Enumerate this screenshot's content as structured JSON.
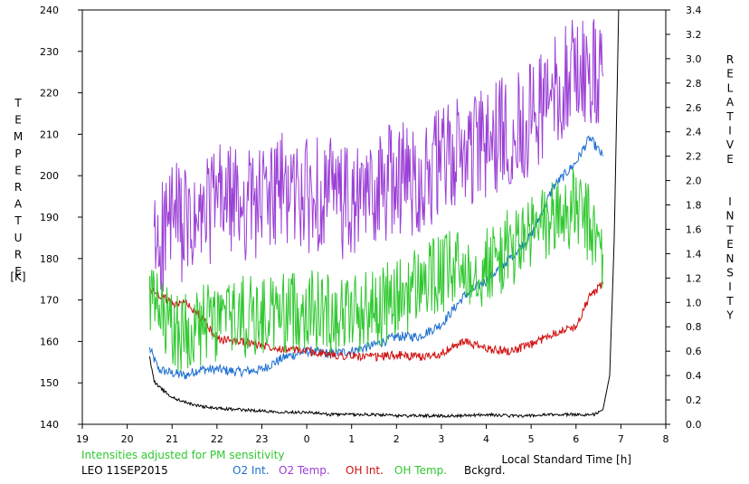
{
  "chart_data": {
    "type": "line",
    "xlabel": "Local Standard Time [h]",
    "ylabel_left": "TEMPERATURE",
    "ylabel_left_unit": "[K]",
    "ylabel_right": "RELATIVE  INTENSITY",
    "x_ticks": [
      "19",
      "20",
      "21",
      "22",
      "23",
      "0",
      "1",
      "2",
      "3",
      "4",
      "5",
      "6",
      "7",
      "8"
    ],
    "xlim": [
      19,
      32
    ],
    "ylim_left": [
      140,
      240
    ],
    "ylim_right": [
      0.0,
      3.4
    ],
    "y_left_ticks": [
      240,
      230,
      220,
      210,
      200,
      190,
      180,
      170,
      160,
      150,
      140
    ],
    "y_right_ticks": [
      "3.4",
      "3.2",
      "3.0",
      "2.8",
      "2.6",
      "2.4",
      "2.2",
      "2.0",
      "1.8",
      "1.6",
      "1.4",
      "1.2",
      "1.0",
      "0.8",
      "0.6",
      "0.4",
      "0.2",
      "0.0"
    ],
    "series": [
      {
        "name": "O2 Int.",
        "axis": "right",
        "color": "#1e6fd0",
        "x": [
          20.5,
          20.7,
          21.0,
          21.3,
          21.6,
          22.0,
          22.5,
          23.0,
          23.5,
          24.0,
          24.5,
          25.0,
          25.5,
          26.0,
          26.5,
          27.0,
          27.5,
          28.0,
          28.5,
          29.0,
          29.5,
          30.0,
          30.3,
          30.6
        ],
        "y": [
          0.62,
          0.45,
          0.42,
          0.4,
          0.45,
          0.45,
          0.43,
          0.45,
          0.55,
          0.6,
          0.58,
          0.6,
          0.65,
          0.72,
          0.72,
          0.82,
          1.05,
          1.18,
          1.35,
          1.55,
          1.95,
          2.15,
          2.35,
          2.2
        ]
      },
      {
        "name": "O2 Temp.",
        "axis": "left",
        "color": "#9b40d6",
        "x": [
          20.6,
          21.0,
          21.5,
          22.0,
          22.5,
          23.0,
          23.5,
          24.0,
          24.5,
          25.0,
          25.5,
          26.0,
          26.5,
          27.0,
          27.5,
          28.0,
          28.5,
          29.0,
          29.5,
          30.0,
          30.3,
          30.6
        ],
        "y": [
          182,
          190,
          186,
          195,
          193,
          194,
          197,
          195,
          196,
          192,
          196,
          200,
          199,
          203,
          206,
          207,
          211,
          214,
          220,
          226,
          224,
          224
        ]
      },
      {
        "name": "OH Int.",
        "axis": "right",
        "color": "#d01010",
        "x": [
          20.5,
          20.8,
          21.0,
          21.3,
          21.6,
          22.0,
          22.5,
          23.0,
          23.5,
          24.0,
          24.5,
          25.0,
          25.5,
          26.0,
          26.5,
          27.0,
          27.5,
          28.0,
          28.5,
          29.0,
          29.5,
          30.0,
          30.3,
          30.6
        ],
        "y": [
          1.1,
          1.05,
          0.98,
          1.0,
          0.9,
          0.7,
          0.68,
          0.65,
          0.62,
          0.6,
          0.57,
          0.56,
          0.55,
          0.57,
          0.55,
          0.58,
          0.68,
          0.62,
          0.6,
          0.65,
          0.75,
          0.8,
          1.05,
          1.15
        ]
      },
      {
        "name": "OH Temp.",
        "axis": "left",
        "color": "#2fc82f",
        "x": [
          20.5,
          21.0,
          21.5,
          22.0,
          22.5,
          23.0,
          23.5,
          24.0,
          24.5,
          25.0,
          25.5,
          26.0,
          26.5,
          27.0,
          27.5,
          28.0,
          28.5,
          29.0,
          29.5,
          30.0,
          30.3,
          30.6
        ],
        "y": [
          170,
          162,
          163,
          165,
          166,
          166,
          167,
          168,
          167,
          167,
          168,
          170,
          174,
          176,
          178,
          178,
          182,
          186,
          190,
          192,
          188,
          181
        ]
      },
      {
        "name": "Bckgrd.",
        "axis": "right",
        "color": "#000000",
        "x": [
          20.5,
          20.6,
          20.8,
          21.0,
          21.3,
          21.6,
          22.0,
          22.5,
          23.0,
          23.5,
          24.0,
          24.5,
          25.0,
          25.5,
          26.0,
          26.5,
          27.0,
          27.5,
          28.0,
          28.5,
          29.0,
          29.5,
          30.0,
          30.4,
          30.6,
          30.75,
          30.85,
          30.95
        ],
        "y": [
          0.55,
          0.35,
          0.28,
          0.22,
          0.18,
          0.15,
          0.13,
          0.12,
          0.11,
          0.1,
          0.1,
          0.08,
          0.08,
          0.08,
          0.07,
          0.07,
          0.07,
          0.07,
          0.08,
          0.07,
          0.07,
          0.08,
          0.08,
          0.08,
          0.12,
          0.4,
          1.5,
          3.4
        ]
      }
    ]
  },
  "notes": {
    "adjustment": "Intensities adjusted for PM sensitivity",
    "station_date": "LEO 11SEP2015"
  },
  "legend": [
    {
      "label": "O2 Int.",
      "color": "#1e6fd0"
    },
    {
      "label": "O2 Temp.",
      "color": "#9b40d6"
    },
    {
      "label": "OH Int.",
      "color": "#d01010"
    },
    {
      "label": "OH Temp.",
      "color": "#2fc82f"
    },
    {
      "label": "Bckgrd.",
      "color": "#000000"
    }
  ]
}
